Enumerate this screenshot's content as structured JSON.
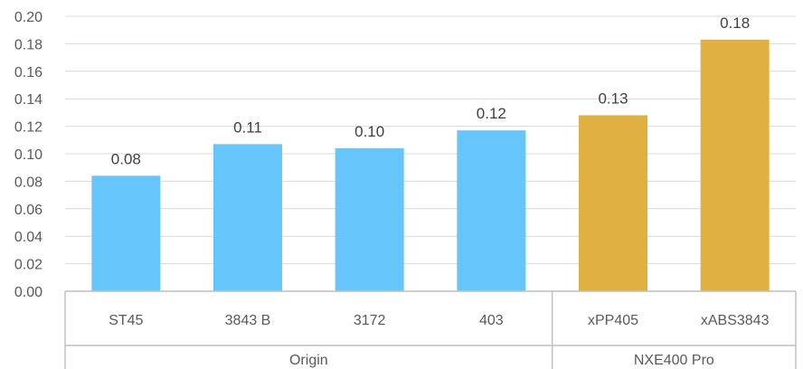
{
  "chart_data": {
    "type": "bar",
    "title": "",
    "xlabel": "",
    "ylabel": "",
    "ylim": [
      0,
      0.2
    ],
    "yticks": [
      "0.00",
      "0.02",
      "0.04",
      "0.06",
      "0.08",
      "0.10",
      "0.12",
      "0.14",
      "0.16",
      "0.18",
      "0.20"
    ],
    "grid": true,
    "legend": "none",
    "categories": [
      "ST45",
      "3843 B",
      "3172",
      "403",
      "xPP405",
      "xABS3843"
    ],
    "values": [
      0.084,
      0.107,
      0.104,
      0.117,
      0.128,
      0.183
    ],
    "data_labels": [
      "0.08",
      "0.11",
      "0.10",
      "0.12",
      "0.13",
      "0.18"
    ],
    "groups": [
      {
        "name": "Origin",
        "categories": [
          "ST45",
          "3843 B",
          "3172",
          "403"
        ],
        "color": "#66c6fc"
      },
      {
        "name": "NXE400 Pro",
        "categories": [
          "xPP405",
          "xABS3843"
        ],
        "color": "#e0b043"
      }
    ]
  }
}
